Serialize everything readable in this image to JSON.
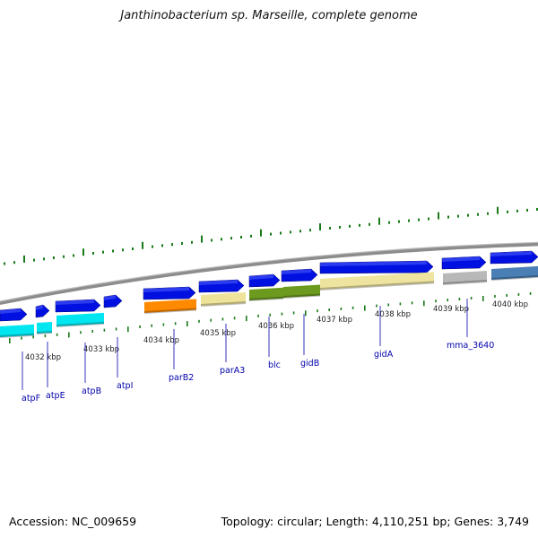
{
  "title": "Janthinobacterium sp. Marseille, complete genome",
  "footer": {
    "accession": "Accession: NC_009659",
    "summary": "Topology: circular; Length: 4,110,251 bp; Genes: 3,749"
  },
  "colors": {
    "backbone": "#8c8c8c",
    "gc_tick": "#1a7a1a",
    "gene_label": "#0000aa",
    "tick_label": "#222222"
  },
  "scale_ticks": [
    {
      "label": "4032 kbp"
    },
    {
      "label": "4033 kbp"
    },
    {
      "label": "4034 kbp"
    },
    {
      "label": "4035 kbp"
    },
    {
      "label": "4036 kbp"
    },
    {
      "label": "4037 kbp"
    },
    {
      "label": "4038 kbp"
    },
    {
      "label": "4039 kbp"
    },
    {
      "label": "4040 kbp"
    }
  ],
  "gene_labels": [
    "atpF",
    "atpE",
    "atpB",
    "atpI",
    "parB2",
    "parA3",
    "blc",
    "gidB",
    "gidA",
    "mma_3640"
  ],
  "cds_colors": {
    "atp": "#00e6f0",
    "parB2": "#ff8a00",
    "parA3": "#efe39a",
    "gidB": "#6b9a1e",
    "gidA": "#eee4a0",
    "mma_3640": "#b8b8b8",
    "next": "#4a7fb5",
    "blue": "#0010e0"
  }
}
